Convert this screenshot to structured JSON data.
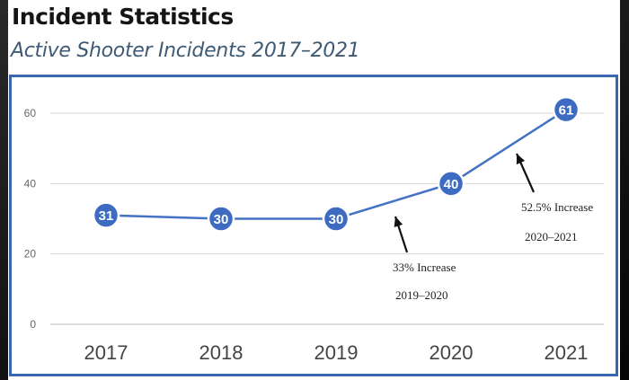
{
  "title": "Incident Statistics",
  "subtitle": "Active Shooter Incidents 2017–2021",
  "chart_data": {
    "type": "line",
    "categories": [
      "2017",
      "2018",
      "2019",
      "2020",
      "2021"
    ],
    "values": [
      31,
      30,
      30,
      40,
      61
    ],
    "ylim": [
      0,
      60
    ],
    "yticks": [
      0,
      20,
      40,
      60
    ],
    "grid": true,
    "line_color": "#4472c4",
    "annotations": [
      {
        "line1": "33% Increase",
        "line2": "2019–2020"
      },
      {
        "line1": "52.5% Increase",
        "line2": "2020–2021"
      }
    ]
  }
}
